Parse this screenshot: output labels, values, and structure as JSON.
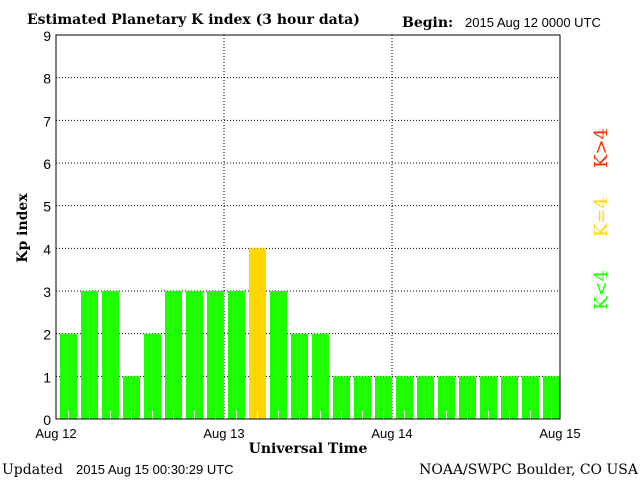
{
  "chart_data": {
    "type": "bar",
    "title": "Estimated Planetary K index (3 hour data)",
    "begin_label": "Begin:",
    "begin_value": "2015 Aug 12 0000 UTC",
    "xlabel": "Universal Time",
    "ylabel": "Kp index",
    "ylim": [
      0,
      9
    ],
    "yticks": [
      "0",
      "1",
      "2",
      "3",
      "4",
      "5",
      "6",
      "7",
      "8",
      "9"
    ],
    "xticks": [
      "Aug 12",
      "Aug 13",
      "Aug 14",
      "Aug 15"
    ],
    "grid": true,
    "interval_hours": 3,
    "values": [
      2,
      3,
      3,
      1,
      2,
      3,
      3,
      3,
      3,
      4,
      3,
      2,
      2,
      1,
      1,
      1,
      1,
      1,
      1,
      1,
      1,
      1,
      1,
      1
    ],
    "colors": {
      "below4": "#1eff00",
      "equal4": "#ffd700",
      "above4": "#ff2a00"
    },
    "legend": [
      {
        "label": "K<4",
        "color": "#1eff00"
      },
      {
        "label": "K=4",
        "color": "#ffd700"
      },
      {
        "label": "K>4",
        "color": "#ff2a00"
      }
    ],
    "legend_placement": "right"
  },
  "footer": {
    "updated_label": "Updated",
    "updated_value": "2015 Aug 15 00:30:29 UTC",
    "credit": "NOAA/SWPC Boulder, CO USA"
  }
}
